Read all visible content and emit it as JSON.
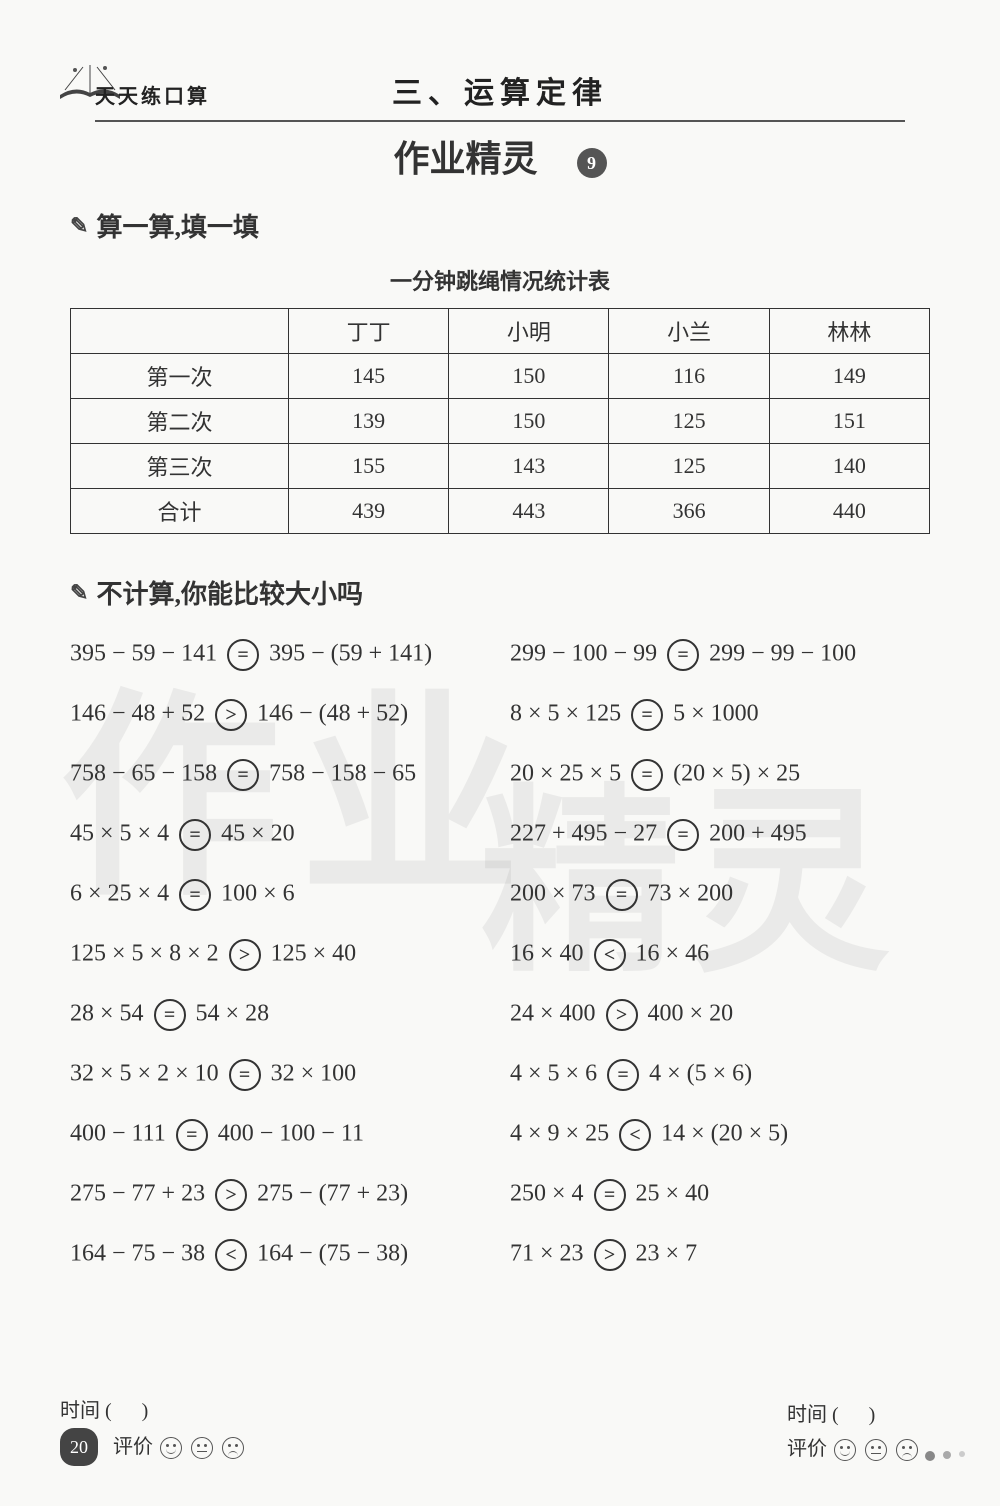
{
  "header": {
    "series_label": "天天练口算",
    "page_title": "三、运算定律",
    "handwritten": "作业精灵",
    "badge_number": "9"
  },
  "section1": {
    "label": "算一算,填一填",
    "table_title": "一分钟跳绳情况统计表",
    "table": {
      "columns": [
        "",
        "丁丁",
        "小明",
        "小兰",
        "林林"
      ],
      "rows": [
        {
          "label": "第一次",
          "cells": [
            "145",
            "150",
            "116",
            "149"
          ],
          "handwritten": [
            false,
            true,
            false,
            false
          ]
        },
        {
          "label": "第二次",
          "cells": [
            "139",
            "150",
            "125",
            "151"
          ],
          "handwritten": [
            false,
            false,
            false,
            false
          ]
        },
        {
          "label": "第三次",
          "cells": [
            "155",
            "143",
            "125",
            "140"
          ],
          "handwritten": [
            false,
            false,
            false,
            true
          ]
        },
        {
          "label": "合计",
          "cells": [
            "439",
            "443",
            "366",
            "440"
          ],
          "handwritten": [
            true,
            false,
            true,
            false
          ]
        }
      ]
    }
  },
  "section2": {
    "label": "不计算,你能比较大小吗",
    "problems_left": [
      {
        "lhs": "395 − 59 − 141",
        "cmp": "=",
        "rhs": "395 − (59 + 141)"
      },
      {
        "lhs": "146 − 48 + 52",
        "cmp": ">",
        "rhs": "146 − (48 + 52)"
      },
      {
        "lhs": "758 − 65 − 158",
        "cmp": "=",
        "rhs": "758 − 158 − 65"
      },
      {
        "lhs": "45 × 5 × 4",
        "cmp": "=",
        "rhs": "45 × 20"
      },
      {
        "lhs": "6 × 25 × 4",
        "cmp": "=",
        "rhs": "100 × 6"
      },
      {
        "lhs": "125 × 5 × 8 × 2",
        "cmp": ">",
        "rhs": "125 × 40"
      },
      {
        "lhs": "28 × 54",
        "cmp": "=",
        "rhs": "54 × 28"
      },
      {
        "lhs": "32 × 5 × 2 × 10",
        "cmp": "=",
        "rhs": "32 × 100"
      },
      {
        "lhs": "400 − 111",
        "cmp": "=",
        "rhs": "400 − 100 − 11"
      },
      {
        "lhs": "275 − 77 + 23",
        "cmp": ">",
        "rhs": "275 − (77 + 23)"
      },
      {
        "lhs": "164 − 75 − 38",
        "cmp": "<",
        "rhs": "164 − (75 − 38)"
      }
    ],
    "problems_right": [
      {
        "lhs": "299 − 100 − 99",
        "cmp": "=",
        "rhs": "299 − 99 − 100"
      },
      {
        "lhs": "8 × 5 × 125",
        "cmp": "=",
        "rhs": "5 × 1000"
      },
      {
        "lhs": "20 × 25 × 5",
        "cmp": "=",
        "rhs": "(20 × 5) × 25"
      },
      {
        "lhs": "227 + 495 − 27",
        "cmp": "=",
        "rhs": "200 + 495"
      },
      {
        "lhs": "200 × 73",
        "cmp": "=",
        "rhs": "73 × 200"
      },
      {
        "lhs": "16 × 40",
        "cmp": "<",
        "rhs": "16 × 46"
      },
      {
        "lhs": "24 × 400",
        "cmp": ">",
        "rhs": "400 × 20"
      },
      {
        "lhs": "4 × 5 × 6",
        "cmp": "=",
        "rhs": "4 × (5 × 6)"
      },
      {
        "lhs": "4 × 9 × 25",
        "cmp": "<",
        "rhs": "14 × (20 × 5)"
      },
      {
        "lhs": "250 × 4",
        "cmp": "=",
        "rhs": "25 × 40"
      },
      {
        "lhs": "71 × 23",
        "cmp": ">",
        "rhs": "23 × 7"
      }
    ]
  },
  "footer": {
    "time_label": "时间 (",
    "time_close": ")",
    "rating_label": "评价",
    "page_number": "20"
  },
  "watermark": {
    "left": "作业",
    "right": "精灵"
  },
  "styling": {
    "background_color": "#f9f9f7",
    "text_color": "#333333",
    "border_color": "#333333",
    "badge_bg": "#555555",
    "title_fontsize": 30,
    "body_fontsize": 24,
    "table_fontsize": 22
  }
}
